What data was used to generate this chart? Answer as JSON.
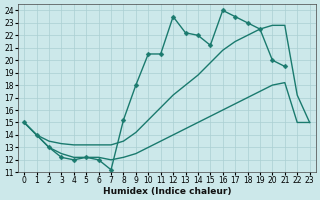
{
  "xlabel": "Humidex (Indice chaleur)",
  "bg_color": "#cce8ea",
  "grid_color": "#aacfd2",
  "line_color": "#1a7a6e",
  "xlim": [
    -0.5,
    23.5
  ],
  "ylim": [
    11,
    24.5
  ],
  "yticks": [
    11,
    12,
    13,
    14,
    15,
    16,
    17,
    18,
    19,
    20,
    21,
    22,
    23,
    24
  ],
  "xticks": [
    0,
    1,
    2,
    3,
    4,
    5,
    6,
    7,
    8,
    9,
    10,
    11,
    12,
    13,
    14,
    15,
    16,
    17,
    18,
    19,
    20,
    21,
    22,
    23
  ],
  "lines": [
    {
      "x": [
        0,
        1,
        2,
        3,
        4,
        5,
        6,
        7,
        8,
        9,
        10,
        11,
        12,
        13,
        14,
        15,
        16,
        17,
        18,
        19,
        20,
        21
      ],
      "y": [
        15.0,
        14.0,
        13.0,
        12.2,
        12.0,
        12.2,
        12.0,
        11.2,
        15.2,
        18.0,
        20.5,
        20.5,
        23.5,
        22.2,
        22.0,
        21.2,
        24.0,
        23.5,
        23.0,
        22.5,
        20.0,
        19.5
      ],
      "marker": "D",
      "ms": 2.5,
      "lw": 1.0,
      "ls": "-"
    },
    {
      "x": [
        0,
        1,
        2,
        3,
        4,
        5,
        6,
        7,
        8,
        9,
        10,
        11,
        12,
        13,
        14,
        15,
        16,
        17,
        18,
        19,
        20,
        21,
        22,
        23
      ],
      "y": [
        15.0,
        14.0,
        13.5,
        13.3,
        13.2,
        13.2,
        13.2,
        13.2,
        13.5,
        14.2,
        15.2,
        16.2,
        17.2,
        18.0,
        18.8,
        19.8,
        20.8,
        21.5,
        22.0,
        22.5,
        22.8,
        22.8,
        17.2,
        15.0
      ],
      "marker": null,
      "ms": 0,
      "lw": 1.0,
      "ls": "-"
    },
    {
      "x": [
        0,
        1,
        2,
        3,
        4,
        5,
        6,
        7,
        8,
        9,
        10,
        11,
        12,
        13,
        14,
        15,
        16,
        17,
        18,
        19,
        20,
        21,
        22,
        23
      ],
      "y": [
        15.0,
        14.0,
        13.0,
        12.5,
        12.2,
        12.2,
        12.2,
        12.0,
        12.2,
        12.5,
        13.0,
        13.5,
        14.0,
        14.5,
        15.0,
        15.5,
        16.0,
        16.5,
        17.0,
        17.5,
        18.0,
        18.2,
        15.0,
        15.0
      ],
      "marker": null,
      "ms": 0,
      "lw": 1.0,
      "ls": "-"
    }
  ]
}
